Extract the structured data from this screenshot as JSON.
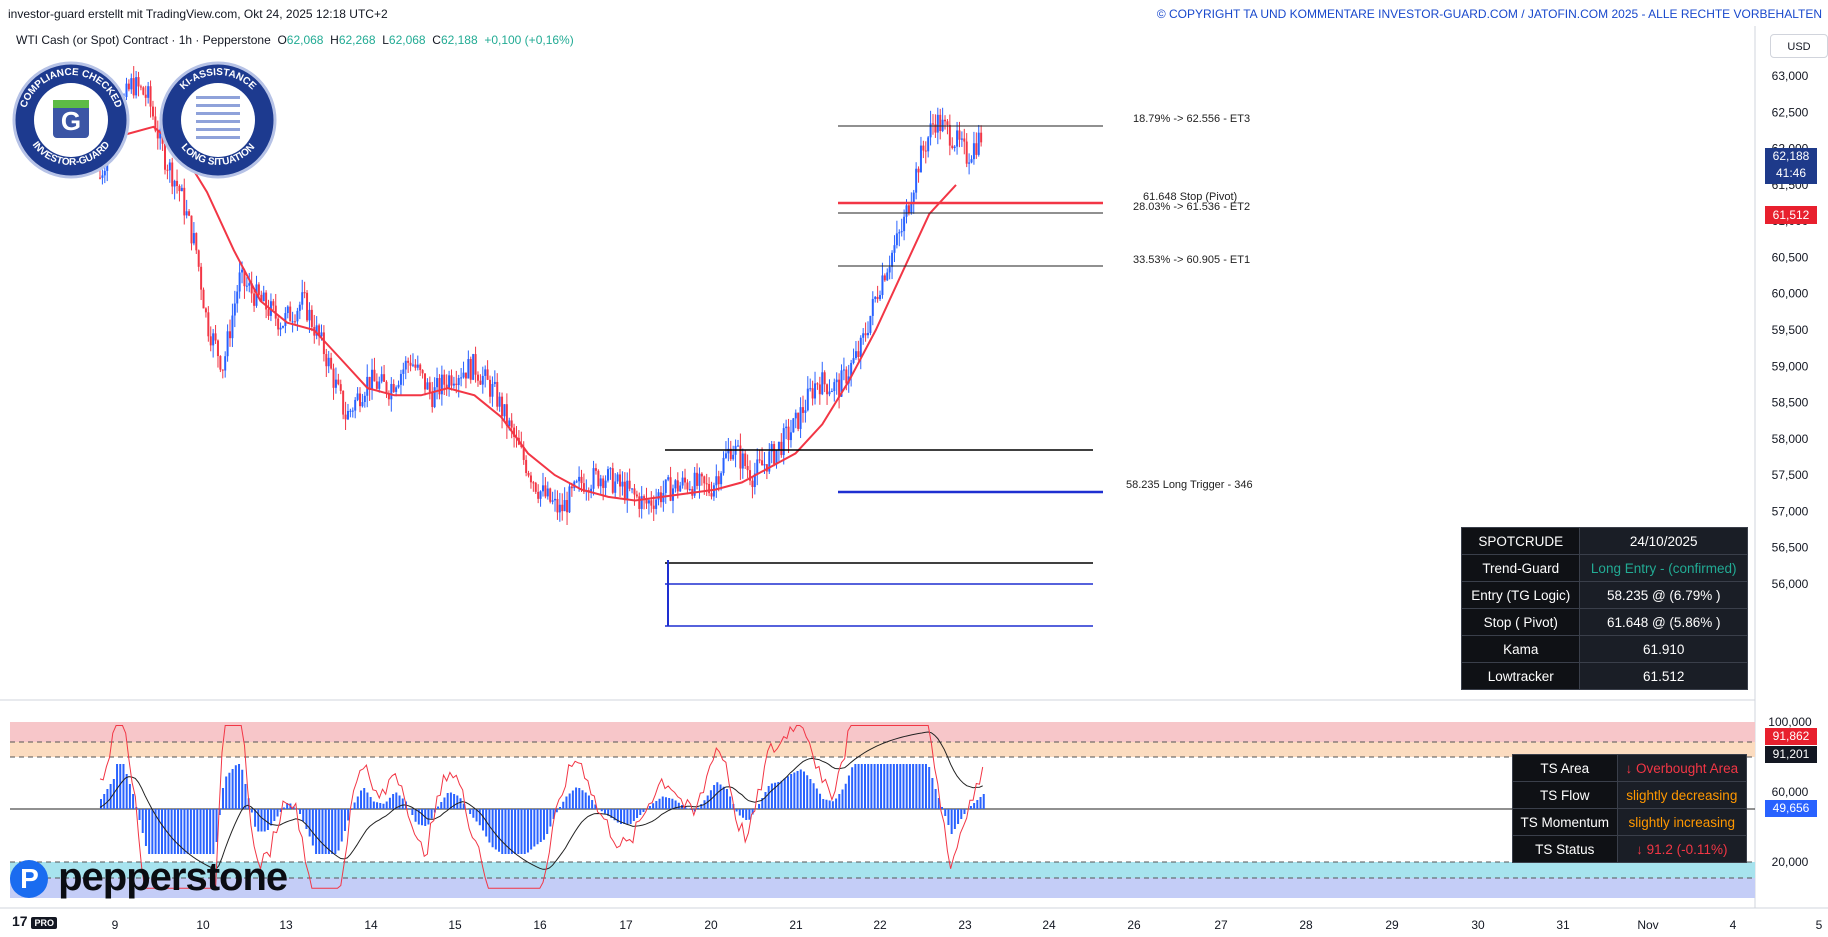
{
  "header": {
    "left_text": "investor-guard erstellt mit TradingView.com, Okt 24, 2025 12:18 UTC+2",
    "right_text": "© COPYRIGHT TA UND KOMMENTARE INVESTOR-GUARD.COM / JATOFIN.COM 2025 - ALLE RECHTE VORBEHALTEN"
  },
  "legend": {
    "symbol": "WTI Cash (or Spot) Contract · 1h · Pepperstone",
    "o_label": "O",
    "o_value": "62,068",
    "h_label": "H",
    "h_value": "62,268",
    "l_label": "L",
    "l_value": "62,068",
    "c_label": "C",
    "c_value": "62,188",
    "change": "+0,100 (+0,16%)"
  },
  "currency": "USD",
  "badges": {
    "compliance": {
      "top": "COMPLIANCE CHECKED",
      "bottom": "INVESTOR-GUARD"
    },
    "ki": {
      "top": "KI-ASSISTANCE",
      "bottom": "LONG SITUATION"
    }
  },
  "price_tags": {
    "current": "62,188",
    "countdown": "41:46",
    "lowtracker": "61,512",
    "osc_top": "91,862",
    "osc_mid": "91,201",
    "osc_low": "49,656"
  },
  "info_table": {
    "rows": [
      {
        "key": "SPOTCRUDE",
        "value": "24/10/2025"
      },
      {
        "key": "Trend-Guard",
        "value": "Long Entry - (confirmed)"
      },
      {
        "key": "Entry (TG Logic)",
        "value": "58.235 @ (6.79% )"
      },
      {
        "key": "Stop ( Pivot)",
        "value": "61.648 @ (5.86% )"
      },
      {
        "key": "Kama",
        "value": "61.910"
      },
      {
        "key": "Lowtracker",
        "value": "61.512"
      }
    ]
  },
  "ts_table": {
    "rows": [
      {
        "key": "TS Area",
        "value": "↓ Overbought Area"
      },
      {
        "key": "TS Flow",
        "value": "slightly decreasing"
      },
      {
        "key": "TS Momentum",
        "value": "slightly increasing"
      },
      {
        "key": "TS Status",
        "value": "↓ 91.2 (-0.11%)"
      }
    ]
  },
  "colors": {
    "candle_up": "#2962ff",
    "candle_down": "#f23645",
    "kama": "#f23645",
    "stop_line": "#f23645",
    "entry_line": "#1e2fd1",
    "info_green": "#22ab94",
    "info_orange": "#ff9800",
    "overbought_band": "#f7c6c9",
    "oversold_band": "#a7e3ee"
  },
  "logos": {
    "brand": "pepperstone",
    "tv": "17",
    "tv_sub": "PRO"
  },
  "chart_data": {
    "type": "candlestick",
    "price_axis": {
      "min": 55.8,
      "max": 63.2,
      "ticks": [
        "63,000",
        "62,500",
        "62,000",
        "61,500",
        "61,000",
        "60,500",
        "60,000",
        "59,500",
        "59,000",
        "58,500",
        "58,000",
        "57,500",
        "57,000",
        "56,500",
        "56,000"
      ]
    },
    "osc_axis": {
      "ticks": [
        "100,000",
        "60,000",
        "20,000"
      ]
    },
    "x_ticks": [
      "9",
      "10",
      "13",
      "14",
      "15",
      "16",
      "17",
      "20",
      "21",
      "22",
      "23",
      "24",
      "26",
      "27",
      "28",
      "29",
      "30",
      "31",
      "Nov",
      "4",
      "5"
    ],
    "levels": [
      {
        "label": "18.79% -> 62.556 - ET3",
        "value": 62.556
      },
      {
        "label": "61.648  Stop (Pivot)",
        "value": 61.648
      },
      {
        "label": "28.03% -> 61.536 - ET2",
        "value": 61.536
      },
      {
        "label": "33.53% -> 60.905 - ET1",
        "value": 60.905
      },
      {
        "label": "58.235  Long Trigger - 346",
        "value": 58.235
      }
    ],
    "box_levels": [
      58.7,
      57.4,
      57.15,
      56.67
    ],
    "price_path": [
      [
        9,
        61.6
      ],
      [
        9.3,
        62.4
      ],
      [
        9.6,
        62.9
      ],
      [
        9.9,
        62.7
      ],
      [
        10.2,
        61.9
      ],
      [
        10.5,
        61.4
      ],
      [
        10.8,
        60.6
      ],
      [
        11.0,
        59.6
      ],
      [
        11.3,
        59.0
      ],
      [
        11.6,
        60.2
      ],
      [
        12.0,
        59.9
      ],
      [
        12.4,
        59.6
      ],
      [
        12.8,
        59.9
      ],
      [
        13.2,
        59.2
      ],
      [
        13.6,
        58.3
      ],
      [
        14.0,
        58.8
      ],
      [
        14.4,
        58.7
      ],
      [
        14.8,
        59.1
      ],
      [
        15.2,
        58.6
      ],
      [
        15.6,
        58.9
      ],
      [
        16.0,
        59.0
      ],
      [
        16.4,
        58.6
      ],
      [
        16.8,
        57.9
      ],
      [
        17.2,
        57.3
      ],
      [
        17.6,
        57.0
      ],
      [
        18.0,
        57.4
      ],
      [
        18.4,
        57.5
      ],
      [
        18.8,
        57.3
      ],
      [
        19.2,
        57.1
      ],
      [
        19.6,
        57.3
      ],
      [
        20.0,
        57.4
      ],
      [
        20.4,
        57.3
      ],
      [
        20.8,
        57.9
      ],
      [
        21.2,
        57.5
      ],
      [
        21.6,
        57.8
      ],
      [
        22.0,
        58.2
      ],
      [
        22.4,
        58.8
      ],
      [
        22.8,
        58.7
      ],
      [
        23.2,
        59.2
      ],
      [
        23.6,
        60.2
      ],
      [
        24.0,
        60.9
      ],
      [
        24.3,
        61.8
      ],
      [
        24.6,
        62.4
      ],
      [
        24.9,
        62.2
      ],
      [
        25.2,
        61.9
      ],
      [
        25.5,
        62.2
      ]
    ],
    "kama_path": [
      [
        9,
        61.9
      ],
      [
        9.5,
        62.2
      ],
      [
        10.0,
        62.3
      ],
      [
        10.5,
        62.0
      ],
      [
        11.0,
        61.4
      ],
      [
        11.5,
        60.6
      ],
      [
        12.0,
        59.9
      ],
      [
        12.5,
        59.6
      ],
      [
        13.0,
        59.5
      ],
      [
        13.5,
        59.1
      ],
      [
        14.0,
        58.7
      ],
      [
        14.5,
        58.6
      ],
      [
        15.0,
        58.6
      ],
      [
        15.5,
        58.7
      ],
      [
        16.0,
        58.6
      ],
      [
        16.5,
        58.3
      ],
      [
        17.0,
        57.8
      ],
      [
        17.5,
        57.5
      ],
      [
        18.0,
        57.3
      ],
      [
        18.5,
        57.2
      ],
      [
        19.0,
        57.15
      ],
      [
        19.5,
        57.2
      ],
      [
        20.0,
        57.25
      ],
      [
        20.5,
        57.3
      ],
      [
        21.0,
        57.4
      ],
      [
        21.5,
        57.6
      ],
      [
        22.0,
        57.8
      ],
      [
        22.5,
        58.2
      ],
      [
        23.0,
        58.8
      ],
      [
        23.5,
        59.5
      ],
      [
        24.0,
        60.3
      ],
      [
        24.5,
        61.1
      ],
      [
        25.0,
        61.5
      ]
    ]
  }
}
